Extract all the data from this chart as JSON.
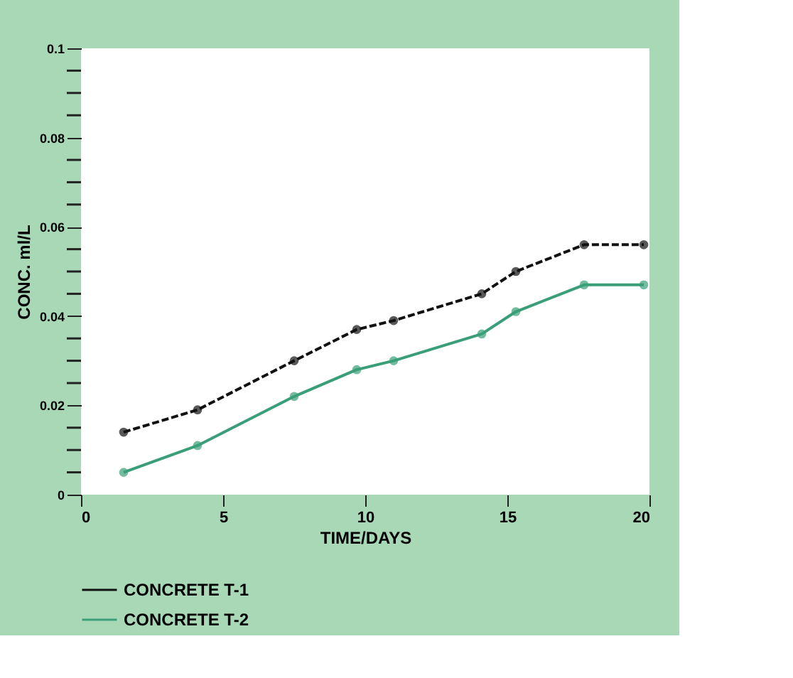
{
  "chart_data": {
    "type": "line",
    "xlabel": "TIME/DAYS",
    "ylabel": "CONC. ml/L",
    "xlim": [
      0,
      20
    ],
    "xticks": [
      0,
      5,
      10,
      15,
      20
    ],
    "ylim": [
      0,
      0.1
    ],
    "yticks": [
      0,
      {
        "value": 0.005,
        "label": null
      },
      {
        "value": 0.01,
        "label": null
      },
      {
        "value": 0.015,
        "label": null
      },
      0.02,
      {
        "value": 0.025,
        "label": null
      },
      {
        "value": 0.03,
        "label": null
      },
      {
        "value": 0.035,
        "label": null
      },
      0.04,
      {
        "value": 0.045,
        "label": null
      },
      {
        "value": 0.05,
        "label": null
      },
      {
        "value": 0.055,
        "label": null
      },
      0.06,
      {
        "value": 0.065,
        "label": null
      },
      {
        "value": 0.07,
        "label": null
      },
      {
        "value": 0.075,
        "label": null
      },
      0.08,
      {
        "value": 0.085,
        "label": null
      },
      {
        "value": 0.09,
        "label": null
      },
      {
        "value": 0.095,
        "label": null
      },
      0.1
    ],
    "x": [
      1.5,
      4.1,
      7.5,
      9.7,
      11.0,
      14.1,
      15.3,
      17.7,
      19.8
    ],
    "series": [
      {
        "name": "CONCRETE T-1",
        "color": "#111111",
        "marker": "circle",
        "line_style": "dashed",
        "values": [
          0.014,
          0.019,
          0.03,
          0.037,
          0.039,
          0.045,
          0.05,
          0.056,
          0.056
        ]
      },
      {
        "name": "CONCRETE T-2",
        "color": "#3a9e78",
        "marker": "circle",
        "line_style": "solid",
        "values": [
          0.005,
          0.011,
          0.022,
          0.028,
          0.03,
          0.036,
          0.041,
          0.047,
          0.047
        ]
      }
    ],
    "legend": "bottom",
    "grid": false
  }
}
